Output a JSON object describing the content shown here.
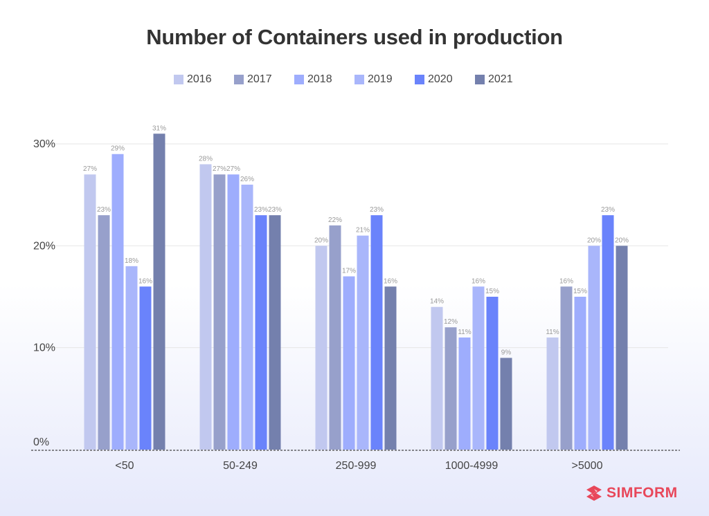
{
  "chart_data": {
    "type": "bar",
    "title": "Number of Containers used in production",
    "categories": [
      "<50",
      "50-249",
      "250-999",
      "1000-4999",
      ">5000"
    ],
    "series": [
      {
        "name": "2016",
        "color": "#c1c8ef",
        "values": [
          27,
          28,
          20,
          14,
          11
        ]
      },
      {
        "name": "2017",
        "color": "#97a0cb",
        "values": [
          23,
          27,
          22,
          12,
          16
        ]
      },
      {
        "name": "2018",
        "color": "#9eadfd",
        "values": [
          29,
          27,
          17,
          11,
          15
        ]
      },
      {
        "name": "2019",
        "color": "#a9b6fb",
        "values": [
          18,
          26,
          21,
          16,
          20
        ]
      },
      {
        "name": "2020",
        "color": "#6a83fb",
        "values": [
          16,
          23,
          23,
          15,
          23
        ]
      },
      {
        "name": "2021",
        "color": "#7480ad",
        "values": [
          31,
          23,
          16,
          9,
          20
        ]
      }
    ],
    "yticks": [
      "0%",
      "10%",
      "20%",
      "30%"
    ],
    "ytick_values": [
      0,
      10,
      20,
      30
    ],
    "ylim": [
      0,
      31
    ],
    "grid": true,
    "legend_position": "top",
    "xlabel": "",
    "ylabel": ""
  },
  "brand": {
    "name": "SIMFORM",
    "color": "#e8475a"
  }
}
